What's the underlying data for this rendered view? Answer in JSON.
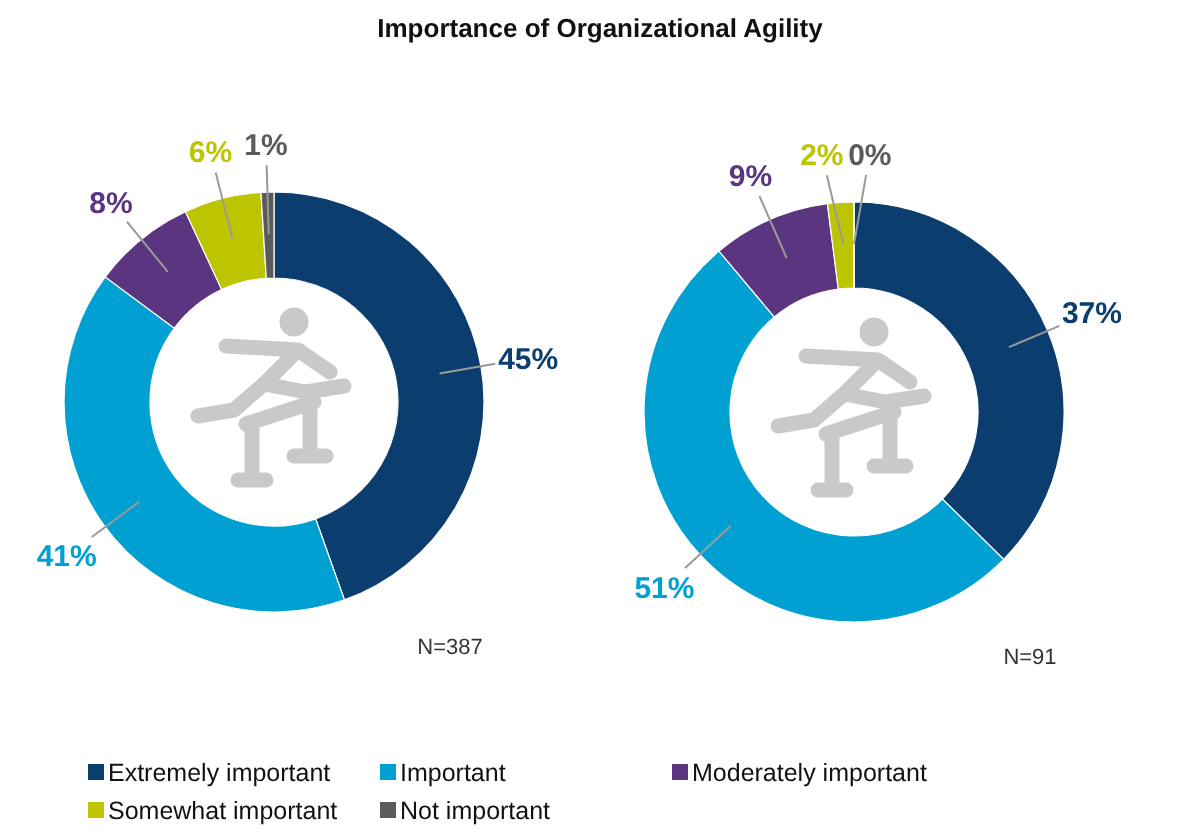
{
  "chart_data": [
    {
      "type": "donut",
      "title": "Importance of Organizational Agility",
      "categories": [
        "Extremely important",
        "Important",
        "Moderately important",
        "Somewhat important",
        "Not important"
      ],
      "values": [
        45,
        41,
        8,
        6,
        1
      ],
      "colors": [
        "#0b3e6f",
        "#00a0d2",
        "#5c3580",
        "#bcc500",
        "#5a5b5d"
      ],
      "value_labels": [
        "45%",
        "41%",
        "8%",
        "6%",
        "1%"
      ],
      "legend": "bottom",
      "annotations": [
        "N=387"
      ]
    },
    {
      "type": "donut",
      "categories": [
        null,
        null,
        null,
        null,
        null
      ],
      "values": [
        37,
        51,
        9,
        2,
        0
      ],
      "colors": [
        "#0b3e6f",
        "#00a0d2",
        "#5c3580",
        "#bcc500",
        "#5a5b5d"
      ],
      "value_labels": [
        "37%",
        "51%",
        "9%",
        "2%",
        "0%"
      ],
      "annotations": [
        "N=91"
      ]
    }
  ]
}
